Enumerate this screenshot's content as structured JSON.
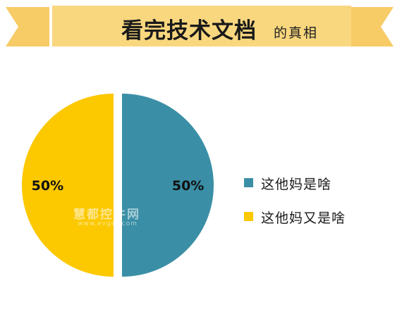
{
  "banner": {
    "title": "看完技术文档",
    "subtitle": "的真相"
  },
  "watermark": {
    "text": "慧都控件网",
    "url": "www.evget.com"
  },
  "colors": {
    "banner": "#f7cb66",
    "teal": "#3a8fa6",
    "yellow": "#fcc800"
  },
  "chart_data": {
    "type": "pie",
    "title": "",
    "slices": [
      {
        "label": "这他妈是啥",
        "value": 50,
        "value_label": "50%",
        "color": "#3a8fa6"
      },
      {
        "label": "这他妈又是啥",
        "value": 50,
        "value_label": "50%",
        "color": "#fcc800"
      }
    ],
    "exploded": true,
    "legend_position": "right"
  }
}
